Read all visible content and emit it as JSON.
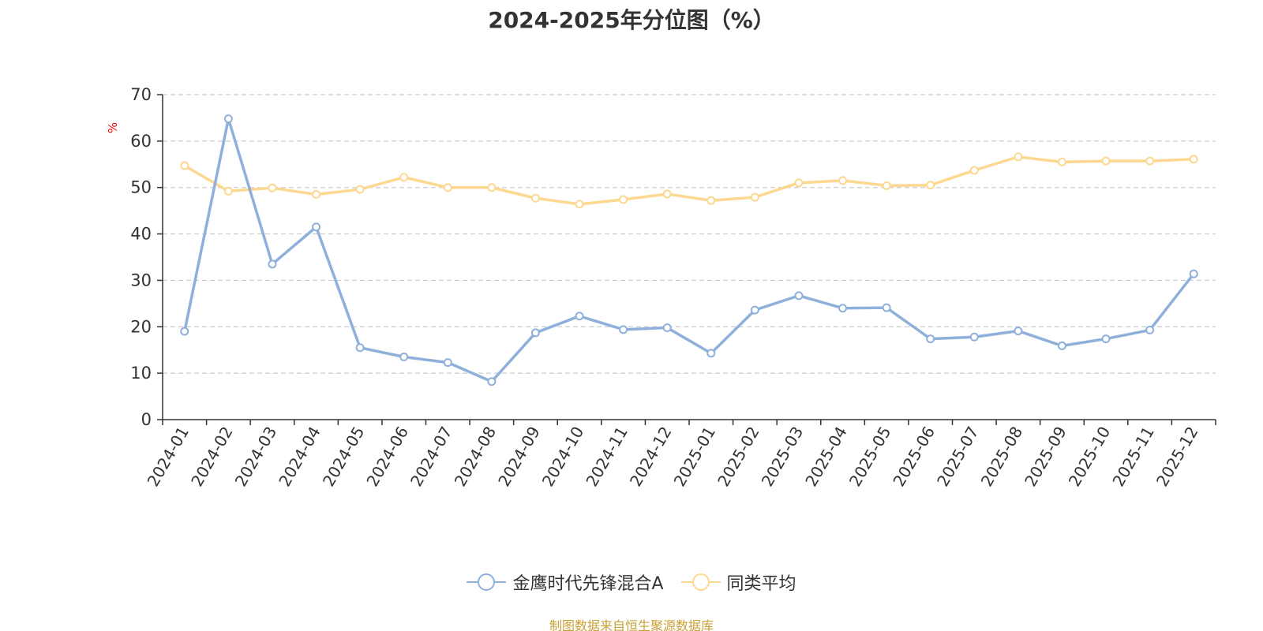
{
  "colors": {
    "series_0": "#8fb0da",
    "series_1": "#fcd890",
    "unit": "#ff0000",
    "source": "#c8a034",
    "axis": "#333333",
    "grid": "#cccccc"
  },
  "chart_data": {
    "type": "line",
    "title": "2024-2025年分位图（%）",
    "ylabel": "%",
    "xlabel": "",
    "ylim": [
      0,
      70
    ],
    "yticks": [
      0,
      10,
      20,
      30,
      40,
      50,
      60,
      70
    ],
    "grid": true,
    "legend_position": "bottom-center",
    "categories": [
      "2024-01",
      "2024-02",
      "2024-03",
      "2024-04",
      "2024-05",
      "2024-06",
      "2024-07",
      "2024-08",
      "2024-09",
      "2024-10",
      "2024-11",
      "2024-12",
      "2025-01",
      "2025-02",
      "2025-03",
      "2025-04",
      "2025-05",
      "2025-06",
      "2025-07",
      "2025-08",
      "2025-09",
      "2025-10",
      "2025-11",
      "2025-12"
    ],
    "series": [
      {
        "name": "金鹰时代先锋混合A",
        "values": [
          19.0,
          64.8,
          33.5,
          41.5,
          15.5,
          13.5,
          12.3,
          8.2,
          18.7,
          22.3,
          19.4,
          19.8,
          14.3,
          23.6,
          26.7,
          24.0,
          24.1,
          17.4,
          17.8,
          19.1,
          15.9,
          17.4,
          19.3,
          31.4
        ]
      },
      {
        "name": "同类平均",
        "values": [
          54.7,
          49.2,
          49.9,
          48.5,
          49.6,
          52.2,
          50.0,
          50.0,
          47.7,
          46.4,
          47.4,
          48.6,
          47.2,
          47.9,
          51.0,
          51.5,
          50.4,
          50.5,
          53.7,
          56.6,
          55.5,
          55.7,
          55.7,
          56.1
        ]
      }
    ]
  },
  "source_text": "制图数据来自恒生聚源数据库"
}
